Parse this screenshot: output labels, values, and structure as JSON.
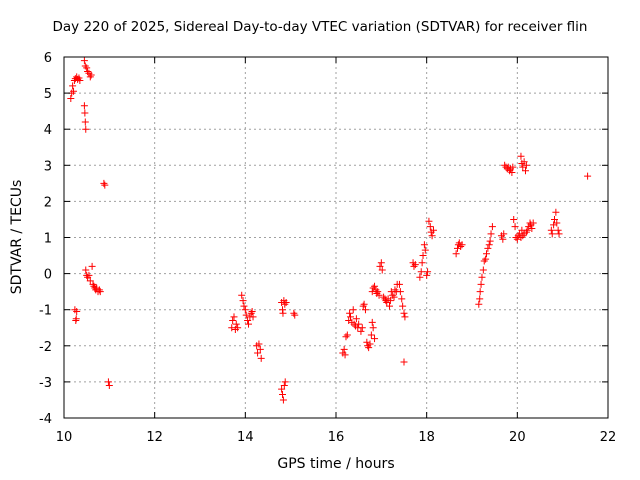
{
  "chart_data": {
    "type": "scatter",
    "title": "Day 220 of 2025, Sidereal Day-to-day VTEC variation (SDTVAR) for receiver flin",
    "xlabel": "GPS time / hours",
    "ylabel": "SDTVAR / TECUs",
    "xlim": [
      10,
      22
    ],
    "ylim": [
      -4,
      6
    ],
    "xticks": [
      10,
      12,
      14,
      16,
      18,
      20,
      22
    ],
    "yticks": [
      -4,
      -3,
      -2,
      -1,
      0,
      1,
      2,
      3,
      4,
      5,
      6
    ],
    "grid": true,
    "marker": "+",
    "color": "#ff0000",
    "series": [
      {
        "name": "SDTVAR",
        "points": [
          [
            10.15,
            4.85
          ],
          [
            10.17,
            5.0
          ],
          [
            10.19,
            5.2
          ],
          [
            10.21,
            5.05
          ],
          [
            10.23,
            5.35
          ],
          [
            10.25,
            5.4
          ],
          [
            10.28,
            5.45
          ],
          [
            10.3,
            5.38
          ],
          [
            10.33,
            5.42
          ],
          [
            10.35,
            5.35
          ],
          [
            10.24,
            -1.0
          ],
          [
            10.26,
            -1.3
          ],
          [
            10.28,
            -1.05
          ],
          [
            10.27,
            -1.25
          ],
          [
            10.45,
            5.9
          ],
          [
            10.47,
            5.75
          ],
          [
            10.5,
            5.7
          ],
          [
            10.52,
            5.6
          ],
          [
            10.55,
            5.55
          ],
          [
            10.58,
            5.45
          ],
          [
            10.6,
            5.5
          ],
          [
            10.45,
            4.65
          ],
          [
            10.46,
            4.45
          ],
          [
            10.47,
            4.2
          ],
          [
            10.48,
            4.0
          ],
          [
            10.48,
            0.1
          ],
          [
            10.5,
            -0.05
          ],
          [
            10.52,
            -0.1
          ],
          [
            10.55,
            -0.05
          ],
          [
            10.58,
            -0.2
          ],
          [
            10.62,
            0.2
          ],
          [
            10.64,
            -0.3
          ],
          [
            10.66,
            -0.35
          ],
          [
            10.68,
            -0.4
          ],
          [
            10.7,
            -0.45
          ],
          [
            10.72,
            -0.4
          ],
          [
            10.75,
            -0.5
          ],
          [
            10.78,
            -0.45
          ],
          [
            10.8,
            -0.5
          ],
          [
            10.88,
            2.5
          ],
          [
            10.9,
            2.45
          ],
          [
            10.98,
            -3.0
          ],
          [
            11.0,
            -3.1
          ],
          [
            13.7,
            -1.5
          ],
          [
            13.72,
            -1.3
          ],
          [
            13.75,
            -1.2
          ],
          [
            13.78,
            -1.55
          ],
          [
            13.8,
            -1.4
          ],
          [
            13.83,
            -1.5
          ],
          [
            13.92,
            -0.6
          ],
          [
            13.95,
            -0.75
          ],
          [
            13.97,
            -0.9
          ],
          [
            14.0,
            -1.0
          ],
          [
            14.02,
            -1.15
          ],
          [
            14.05,
            -1.3
          ],
          [
            14.07,
            -1.4
          ],
          [
            14.1,
            -1.2
          ],
          [
            14.13,
            -1.1
          ],
          [
            14.15,
            -1.05
          ],
          [
            14.17,
            -1.2
          ],
          [
            14.25,
            -2.0
          ],
          [
            14.27,
            -2.2
          ],
          [
            14.3,
            -1.95
          ],
          [
            14.33,
            -2.1
          ],
          [
            14.35,
            -2.35
          ],
          [
            14.8,
            -0.8
          ],
          [
            14.82,
            -1.0
          ],
          [
            14.85,
            -0.75
          ],
          [
            14.87,
            -0.85
          ],
          [
            14.9,
            -0.8
          ],
          [
            14.83,
            -1.1
          ],
          [
            14.8,
            -3.2
          ],
          [
            14.82,
            -3.35
          ],
          [
            14.84,
            -3.5
          ],
          [
            14.86,
            -3.1
          ],
          [
            14.88,
            -3.0
          ],
          [
            15.07,
            -1.1
          ],
          [
            15.09,
            -1.15
          ],
          [
            16.15,
            -2.2
          ],
          [
            16.18,
            -2.1
          ],
          [
            16.2,
            -2.25
          ],
          [
            16.22,
            -1.75
          ],
          [
            16.25,
            -1.7
          ],
          [
            16.28,
            -1.3
          ],
          [
            16.3,
            -1.1
          ],
          [
            16.32,
            -1.2
          ],
          [
            16.35,
            -1.35
          ],
          [
            16.38,
            -1.0
          ],
          [
            16.4,
            -1.4
          ],
          [
            16.43,
            -1.45
          ],
          [
            16.45,
            -1.25
          ],
          [
            16.48,
            -1.5
          ],
          [
            16.5,
            -1.4
          ],
          [
            16.55,
            -1.6
          ],
          [
            16.58,
            -1.5
          ],
          [
            16.6,
            -0.9
          ],
          [
            16.62,
            -0.85
          ],
          [
            16.65,
            -1.0
          ],
          [
            16.68,
            -1.9
          ],
          [
            16.7,
            -2.0
          ],
          [
            16.72,
            -2.05
          ],
          [
            16.75,
            -1.95
          ],
          [
            16.78,
            -1.7
          ],
          [
            16.8,
            -1.35
          ],
          [
            16.82,
            -1.5
          ],
          [
            16.85,
            -1.8
          ],
          [
            16.8,
            -0.5
          ],
          [
            16.82,
            -0.4
          ],
          [
            16.85,
            -0.35
          ],
          [
            16.88,
            -0.45
          ],
          [
            16.9,
            -0.55
          ],
          [
            16.92,
            -0.5
          ],
          [
            16.95,
            -0.6
          ],
          [
            16.97,
            0.2
          ],
          [
            17.0,
            0.3
          ],
          [
            17.02,
            0.1
          ],
          [
            17.05,
            -0.65
          ],
          [
            17.08,
            -0.7
          ],
          [
            17.1,
            -0.75
          ],
          [
            17.12,
            -0.8
          ],
          [
            17.15,
            -0.7
          ],
          [
            17.18,
            -0.9
          ],
          [
            17.2,
            -0.75
          ],
          [
            17.22,
            -0.5
          ],
          [
            17.25,
            -0.6
          ],
          [
            17.28,
            -0.65
          ],
          [
            17.3,
            -0.45
          ],
          [
            17.33,
            -0.5
          ],
          [
            17.35,
            -0.3
          ],
          [
            17.4,
            -0.3
          ],
          [
            17.42,
            -0.5
          ],
          [
            17.45,
            -0.7
          ],
          [
            17.47,
            -0.9
          ],
          [
            17.5,
            -1.1
          ],
          [
            17.52,
            -1.2
          ],
          [
            17.5,
            -2.45
          ],
          [
            17.7,
            0.3
          ],
          [
            17.72,
            0.2
          ],
          [
            17.75,
            0.25
          ],
          [
            17.85,
            -0.1
          ],
          [
            17.88,
            0.05
          ],
          [
            17.9,
            0.3
          ],
          [
            17.92,
            0.5
          ],
          [
            17.95,
            0.8
          ],
          [
            17.97,
            0.65
          ],
          [
            18.0,
            -0.05
          ],
          [
            18.02,
            0.05
          ],
          [
            18.05,
            1.45
          ],
          [
            18.08,
            1.3
          ],
          [
            18.1,
            1.15
          ],
          [
            18.12,
            1.05
          ],
          [
            18.15,
            1.2
          ],
          [
            18.65,
            0.55
          ],
          [
            18.68,
            0.7
          ],
          [
            18.7,
            0.8
          ],
          [
            18.72,
            0.85
          ],
          [
            18.75,
            0.75
          ],
          [
            18.78,
            0.8
          ],
          [
            19.15,
            -0.85
          ],
          [
            19.17,
            -0.7
          ],
          [
            19.18,
            -0.5
          ],
          [
            19.2,
            -0.3
          ],
          [
            19.22,
            -0.1
          ],
          [
            19.25,
            0.1
          ],
          [
            19.27,
            0.35
          ],
          [
            19.3,
            0.4
          ],
          [
            19.32,
            0.55
          ],
          [
            19.35,
            0.7
          ],
          [
            19.38,
            0.8
          ],
          [
            19.4,
            0.9
          ],
          [
            19.42,
            1.1
          ],
          [
            19.45,
            1.3
          ],
          [
            19.65,
            1.05
          ],
          [
            19.68,
            0.95
          ],
          [
            19.7,
            1.1
          ],
          [
            19.72,
            3.0
          ],
          [
            19.75,
            2.95
          ],
          [
            19.78,
            2.9
          ],
          [
            19.8,
            2.95
          ],
          [
            19.83,
            2.85
          ],
          [
            19.85,
            2.9
          ],
          [
            19.88,
            2.8
          ],
          [
            19.9,
            2.95
          ],
          [
            19.92,
            1.5
          ],
          [
            19.95,
            1.3
          ],
          [
            19.97,
            1.0
          ],
          [
            20.0,
            0.95
          ],
          [
            20.02,
            1.05
          ],
          [
            20.05,
            1.1
          ],
          [
            20.08,
            1.0
          ],
          [
            20.1,
            1.2
          ],
          [
            20.12,
            1.05
          ],
          [
            20.15,
            1.1
          ],
          [
            20.08,
            3.25
          ],
          [
            20.1,
            3.05
          ],
          [
            20.12,
            2.95
          ],
          [
            20.15,
            3.1
          ],
          [
            20.18,
            2.85
          ],
          [
            20.2,
            3.0
          ],
          [
            20.2,
            1.15
          ],
          [
            20.22,
            1.2
          ],
          [
            20.25,
            1.3
          ],
          [
            20.28,
            1.4
          ],
          [
            20.3,
            1.35
          ],
          [
            20.32,
            1.25
          ],
          [
            20.35,
            1.4
          ],
          [
            20.75,
            1.2
          ],
          [
            20.77,
            1.1
          ],
          [
            20.8,
            1.35
          ],
          [
            20.82,
            1.5
          ],
          [
            20.85,
            1.7
          ],
          [
            20.87,
            1.4
          ],
          [
            20.9,
            1.2
          ],
          [
            20.92,
            1.1
          ],
          [
            21.55,
            2.7
          ]
        ]
      }
    ]
  }
}
